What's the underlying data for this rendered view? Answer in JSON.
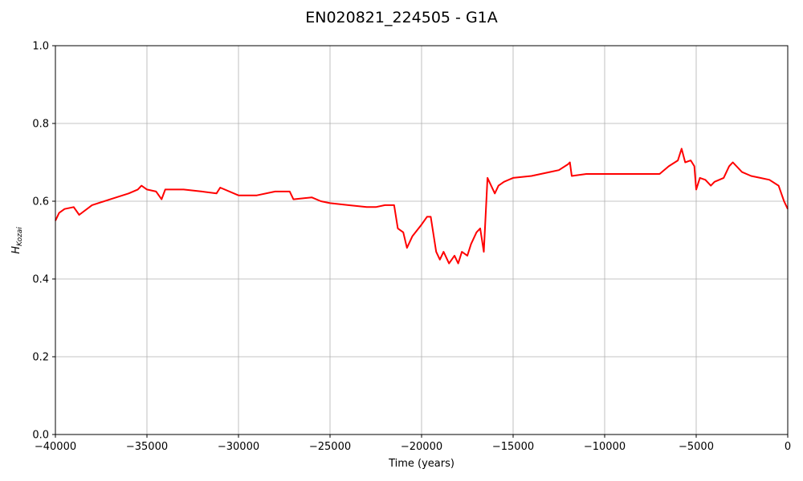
{
  "chart_data": {
    "type": "line",
    "title": "EN020821_224505 - G1A",
    "xlabel": "Time (years)",
    "ylabel": {
      "main": "H",
      "sub": "Kozai"
    },
    "xlim": [
      -40000,
      0
    ],
    "ylim": [
      0.0,
      1.0
    ],
    "grid": true,
    "x_ticks": [
      -40000,
      -35000,
      -30000,
      -25000,
      -20000,
      -15000,
      -10000,
      -5000,
      0
    ],
    "x_tick_labels": [
      "−40000",
      "−35000",
      "−30000",
      "−25000",
      "−20000",
      "−15000",
      "−10000",
      "−5000",
      "0"
    ],
    "y_ticks": [
      0.0,
      0.2,
      0.4,
      0.6,
      0.8,
      1.0
    ],
    "y_tick_labels": [
      "0.0",
      "0.2",
      "0.4",
      "0.6",
      "0.8",
      "1.0"
    ],
    "series": [
      {
        "color": "#ff0000",
        "x": [
          -40000,
          -39800,
          -39500,
          -39000,
          -38700,
          -38000,
          -37000,
          -36000,
          -35500,
          -35300,
          -35000,
          -34500,
          -34200,
          -34000,
          -33000,
          -32000,
          -31200,
          -31000,
          -30000,
          -29000,
          -28000,
          -27200,
          -27000,
          -26000,
          -25500,
          -25000,
          -24000,
          -23000,
          -22500,
          -22000,
          -21500,
          -21300,
          -21000,
          -20800,
          -20500,
          -20000,
          -19700,
          -19500,
          -19200,
          -19000,
          -18800,
          -18500,
          -18200,
          -18000,
          -17800,
          -17500,
          -17300,
          -17000,
          -16800,
          -16600,
          -16400,
          -16000,
          -15800,
          -15500,
          -15000,
          -14000,
          -13000,
          -12500,
          -12000,
          -11900,
          -11800,
          -11000,
          -10000,
          -9000,
          -8000,
          -7000,
          -6500,
          -6000,
          -5800,
          -5600,
          -5300,
          -5100,
          -5000,
          -4800,
          -4500,
          -4200,
          -4000,
          -3500,
          -3200,
          -3000,
          -2500,
          -2000,
          -1500,
          -1000,
          -500,
          -200,
          0
        ],
        "y": [
          0.55,
          0.57,
          0.58,
          0.585,
          0.565,
          0.59,
          0.605,
          0.62,
          0.63,
          0.64,
          0.63,
          0.625,
          0.605,
          0.63,
          0.63,
          0.625,
          0.62,
          0.635,
          0.615,
          0.615,
          0.625,
          0.625,
          0.605,
          0.61,
          0.6,
          0.595,
          0.59,
          0.585,
          0.585,
          0.59,
          0.59,
          0.53,
          0.52,
          0.48,
          0.51,
          0.54,
          0.56,
          0.56,
          0.47,
          0.45,
          0.47,
          0.44,
          0.46,
          0.44,
          0.47,
          0.46,
          0.49,
          0.52,
          0.53,
          0.47,
          0.66,
          0.62,
          0.64,
          0.65,
          0.66,
          0.665,
          0.675,
          0.68,
          0.695,
          0.7,
          0.665,
          0.67,
          0.67,
          0.67,
          0.67,
          0.67,
          0.69,
          0.705,
          0.735,
          0.7,
          0.705,
          0.69,
          0.63,
          0.66,
          0.655,
          0.64,
          0.65,
          0.66,
          0.69,
          0.7,
          0.675,
          0.665,
          0.66,
          0.655,
          0.64,
          0.6,
          0.58
        ]
      }
    ]
  }
}
